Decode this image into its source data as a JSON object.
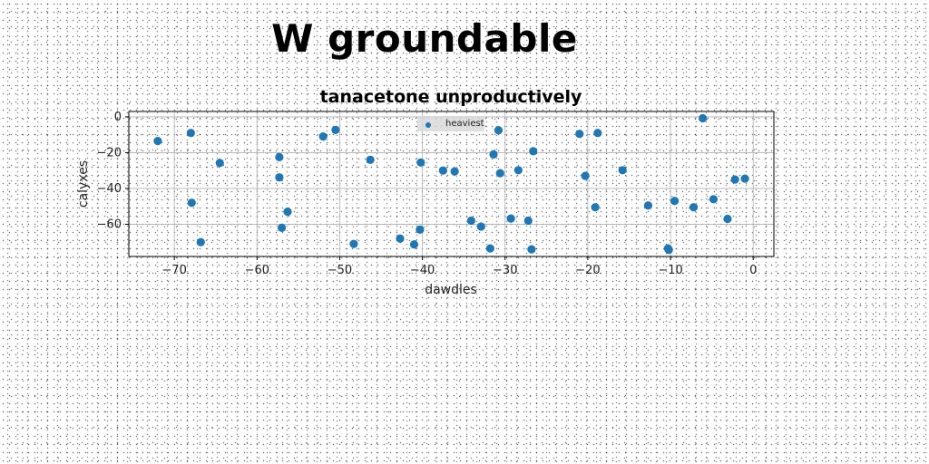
{
  "header": {
    "title": "W groundable"
  },
  "chart_data": {
    "type": "scatter",
    "title": "tanacetone unproductively",
    "xlabel": "dawdles",
    "ylabel": "calyxes",
    "xlim": [
      -75.5,
      2.5
    ],
    "ylim": [
      -78,
      3
    ],
    "xticks": [
      -70,
      -60,
      -50,
      -40,
      -30,
      -20,
      -10,
      0
    ],
    "yticks": [
      0,
      -20,
      -40,
      -60
    ],
    "grid": true,
    "legend_position": "top-center",
    "color": "#1f77b4",
    "series": [
      {
        "name": "heaviest",
        "points": [
          [
            -72.0,
            -13.5
          ],
          [
            -68.0,
            -9.0
          ],
          [
            -67.9,
            -48.0
          ],
          [
            -66.8,
            -70.0
          ],
          [
            -64.5,
            -25.8
          ],
          [
            -57.3,
            -22.5
          ],
          [
            -57.3,
            -33.8
          ],
          [
            -57.0,
            -62.0
          ],
          [
            -56.3,
            -53.0
          ],
          [
            -52.0,
            -11.0
          ],
          [
            -50.5,
            -7.3
          ],
          [
            -48.3,
            -71.0
          ],
          [
            -46.3,
            -24.0
          ],
          [
            -42.7,
            -68.0
          ],
          [
            -41.0,
            -71.3
          ],
          [
            -40.3,
            -63.0
          ],
          [
            -40.2,
            -25.5
          ],
          [
            -37.5,
            -30.0
          ],
          [
            -36.1,
            -30.5
          ],
          [
            -34.1,
            -58.0
          ],
          [
            -32.9,
            -61.3
          ],
          [
            -31.8,
            -73.5
          ],
          [
            -31.4,
            -21.0
          ],
          [
            -30.8,
            -7.5
          ],
          [
            -30.6,
            -31.5
          ],
          [
            -29.3,
            -56.8
          ],
          [
            -28.4,
            -29.8
          ],
          [
            -27.2,
            -58.0
          ],
          [
            -26.8,
            -74.0
          ],
          [
            -26.6,
            -19.2
          ],
          [
            -21.0,
            -9.5
          ],
          [
            -20.3,
            -33.0
          ],
          [
            -19.1,
            -50.5
          ],
          [
            -18.8,
            -9.0
          ],
          [
            -15.8,
            -29.8
          ],
          [
            -12.7,
            -49.5
          ],
          [
            -10.3,
            -73.5
          ],
          [
            -10.2,
            -74.3
          ],
          [
            -9.5,
            -47.0
          ],
          [
            -7.2,
            -50.5
          ],
          [
            -6.1,
            -0.8
          ],
          [
            -4.8,
            -46.0
          ],
          [
            -3.1,
            -57.0
          ],
          [
            -2.2,
            -35.0
          ],
          [
            -1.0,
            -34.5
          ]
        ]
      }
    ]
  }
}
